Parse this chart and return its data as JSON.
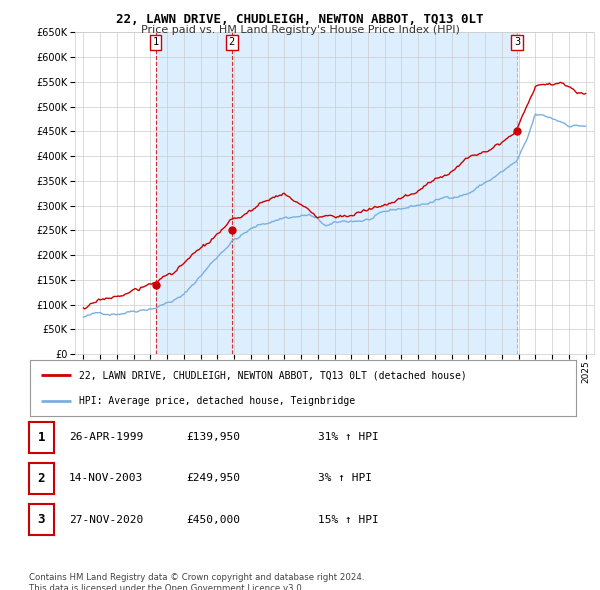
{
  "title": "22, LAWN DRIVE, CHUDLEIGH, NEWTON ABBOT, TQ13 0LT",
  "subtitle": "Price paid vs. HM Land Registry's House Price Index (HPI)",
  "sales": [
    {
      "num": 1,
      "date_x": 1999.32,
      "price": 139950,
      "label": "26-APR-1999",
      "pct": "31%"
    },
    {
      "num": 2,
      "date_x": 2003.87,
      "price": 249950,
      "label": "14-NOV-2003",
      "pct": "3%"
    },
    {
      "num": 3,
      "date_x": 2020.9,
      "price": 450000,
      "label": "27-NOV-2020",
      "pct": "15%"
    }
  ],
  "legend_entry1": "22, LAWN DRIVE, CHUDLEIGH, NEWTON ABBOT, TQ13 0LT (detached house)",
  "legend_entry2": "HPI: Average price, detached house, Teignbridge",
  "table_rows": [
    {
      "num": 1,
      "date": "26-APR-1999",
      "price": "£139,950",
      "pct": "31% ↑ HPI"
    },
    {
      "num": 2,
      "date": "14-NOV-2003",
      "price": "£249,950",
      "pct": "3% ↑ HPI"
    },
    {
      "num": 3,
      "date": "27-NOV-2020",
      "price": "£450,000",
      "pct": "15% ↑ HPI"
    }
  ],
  "footer": "Contains HM Land Registry data © Crown copyright and database right 2024.\nThis data is licensed under the Open Government Licence v3.0.",
  "ylim": [
    0,
    650000
  ],
  "xlim": [
    1994.5,
    2025.5
  ],
  "yticks": [
    0,
    50000,
    100000,
    150000,
    200000,
    250000,
    300000,
    350000,
    400000,
    450000,
    500000,
    550000,
    600000,
    650000
  ],
  "xticks": [
    1995,
    1996,
    1997,
    1998,
    1999,
    2000,
    2001,
    2002,
    2003,
    2004,
    2005,
    2006,
    2007,
    2008,
    2009,
    2010,
    2011,
    2012,
    2013,
    2014,
    2015,
    2016,
    2017,
    2018,
    2019,
    2020,
    2021,
    2022,
    2023,
    2024,
    2025
  ],
  "hpi_color": "#7ab0e0",
  "sale_color": "#cc0000",
  "shade_color": "#ddeeff",
  "vline_color_red": "#cc0000",
  "vline_color_grey": "#aaaaaa",
  "bg_color": "#ffffff",
  "grid_color": "#cccccc"
}
